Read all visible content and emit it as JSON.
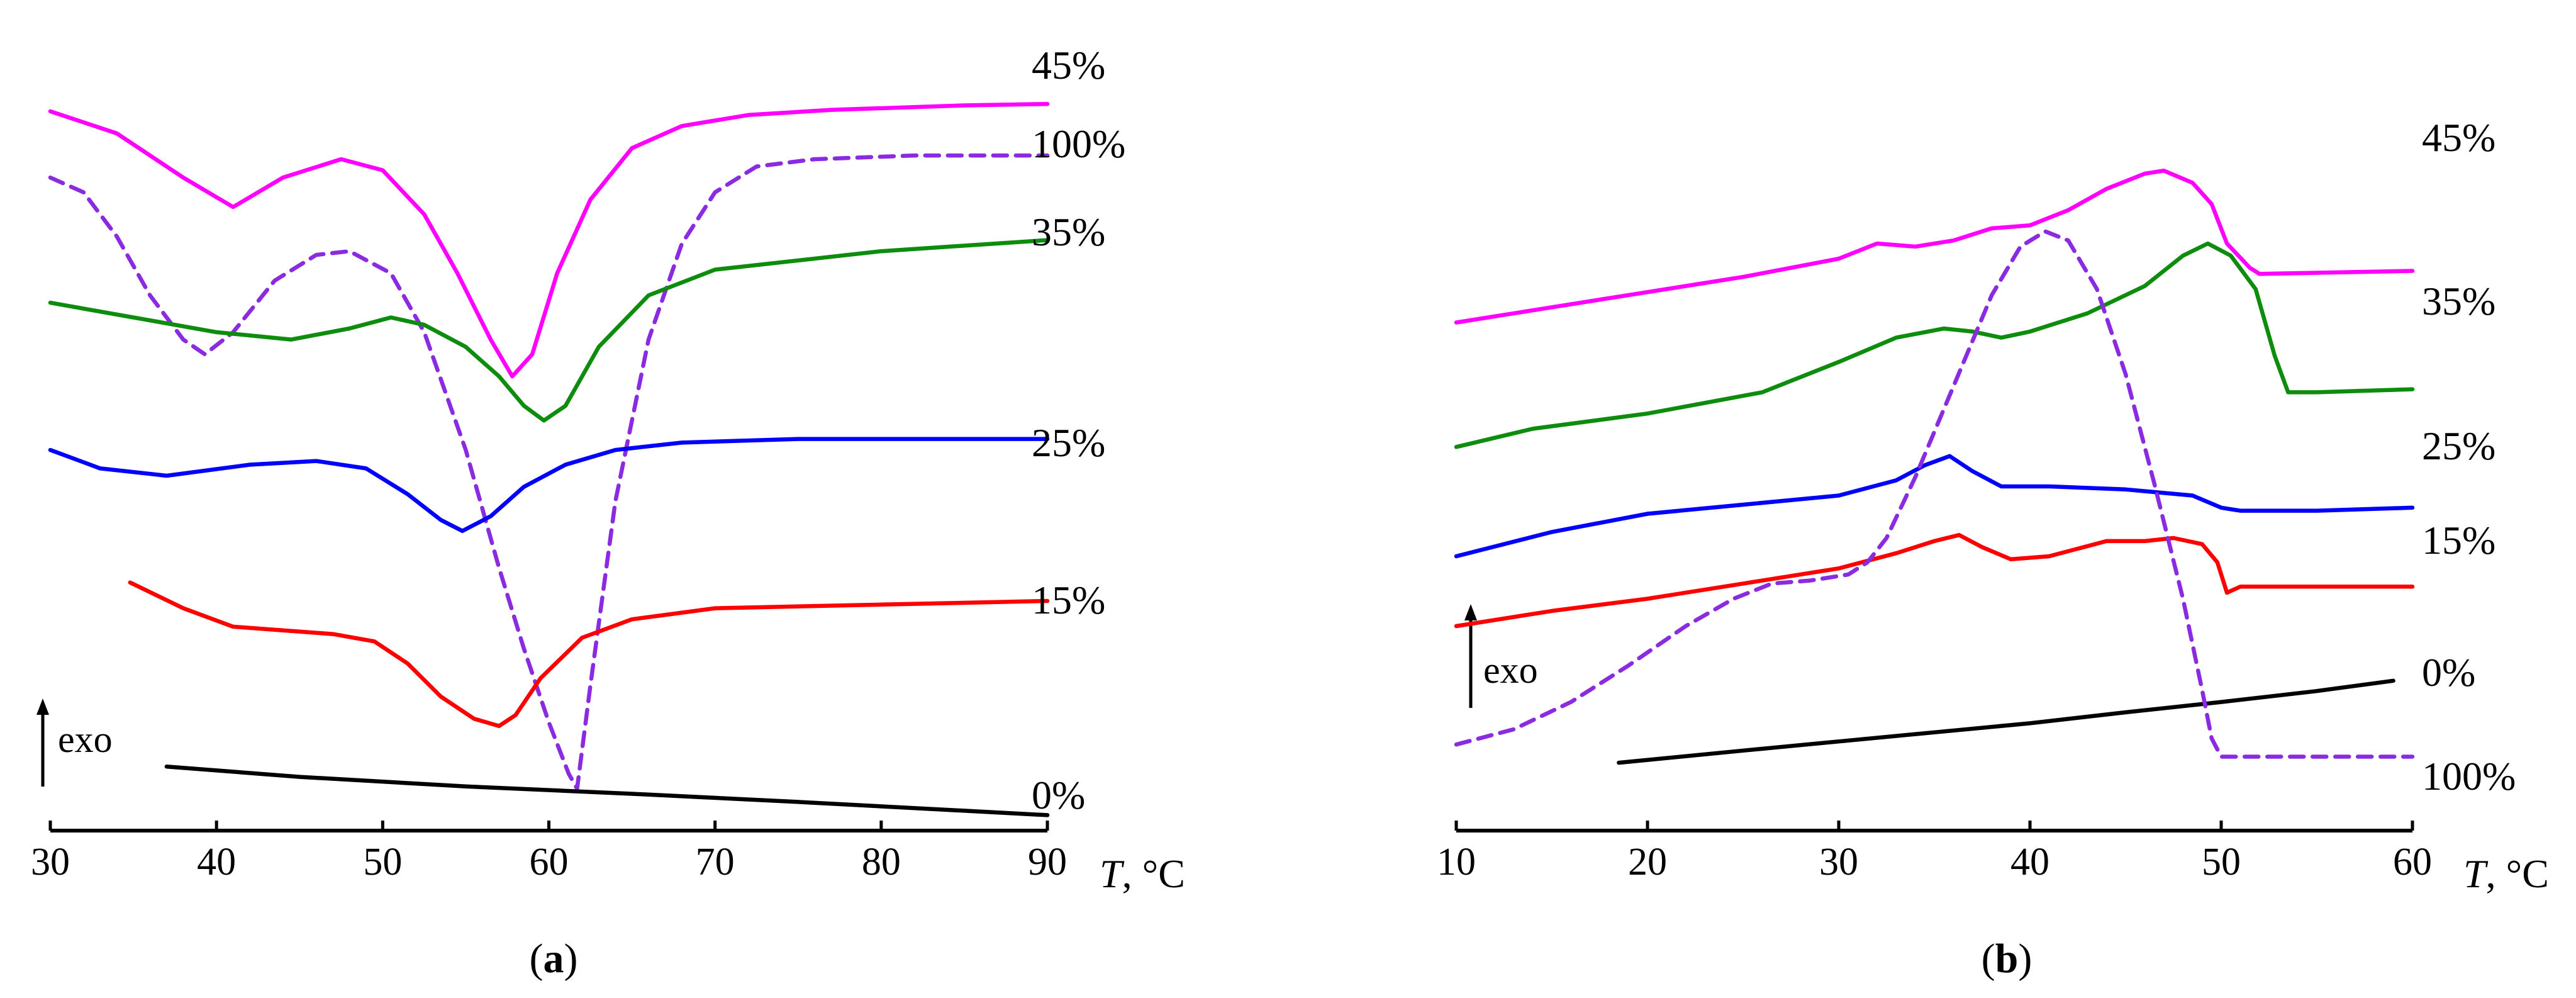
{
  "chart_data": [
    {
      "type": "line",
      "panel_label_prefix": "(",
      "panel_label_letter": "a",
      "panel_label_suffix": ")",
      "xlabel_italic": "T",
      "xlabel_rest": ", °C",
      "xlim": [
        30,
        90
      ],
      "ylim": [
        0,
        100
      ],
      "x_ticks": [
        30,
        40,
        50,
        60,
        70,
        80,
        90
      ],
      "x_tick_labels": [
        "30",
        "40",
        "50",
        "60",
        "70",
        "80",
        "90"
      ],
      "exo_label": "exo",
      "y_axis_ticks": false,
      "series": [
        {
          "name": "45%",
          "color": "#ff00ff",
          "dash": false,
          "x": [
            30,
            34,
            38,
            41,
            44,
            47.5,
            50,
            52.5,
            54.5,
            56.5,
            57.8,
            59,
            60.5,
            62.5,
            65,
            68,
            72,
            77,
            85,
            90
          ],
          "y": [
            93,
            90,
            84,
            80,
            84,
            86.5,
            85,
            79,
            71,
            62,
            57,
            60,
            71,
            81,
            88,
            91,
            92.5,
            93.2,
            93.8,
            94
          ]
        },
        {
          "name": "100%",
          "color": "#8a2be2",
          "dash": true,
          "x": [
            30,
            32,
            34,
            36,
            38,
            39.3,
            41,
            43.5,
            46,
            48,
            50.5,
            52.5,
            55,
            57,
            58.5,
            60,
            61.2,
            61.7,
            62.5,
            64,
            66,
            68,
            70,
            72.5,
            76,
            82,
            90
          ],
          "y": [
            84,
            82,
            76,
            68,
            62,
            60,
            63,
            70,
            73.5,
            74,
            71,
            63,
            47,
            31,
            20,
            10,
            3,
            1,
            15,
            40,
            62,
            75,
            82,
            85.5,
            86.5,
            87,
            87
          ]
        },
        {
          "name": "35%",
          "color": "#0e8c0e",
          "dash": false,
          "x": [
            30,
            35,
            40,
            44.5,
            48,
            50.5,
            52.5,
            55,
            57,
            58.5,
            59.7,
            61,
            63,
            66,
            70,
            74,
            80,
            90
          ],
          "y": [
            67,
            65,
            63,
            62,
            63.5,
            65,
            64,
            61,
            57,
            53,
            51,
            53,
            61,
            68,
            71.5,
            72.5,
            74,
            75.5
          ]
        },
        {
          "name": "25%",
          "color": "#0000ff",
          "dash": false,
          "x": [
            30,
            33,
            37,
            42,
            46,
            49,
            51.5,
            53.5,
            54.8,
            56.5,
            58.5,
            61,
            64,
            68,
            75,
            90
          ],
          "y": [
            47,
            44.5,
            43.5,
            45,
            45.5,
            44.5,
            41,
            37.5,
            36,
            38,
            42,
            45,
            47,
            48,
            48.5,
            48.5
          ]
        },
        {
          "name": "15%",
          "color": "#ff0000",
          "dash": false,
          "x": [
            34.8,
            38,
            41,
            44,
            47,
            49.5,
            51.5,
            53.5,
            55.5,
            57,
            58,
            59.5,
            62,
            65,
            70,
            80,
            90
          ],
          "y": [
            29,
            25.5,
            23,
            22.5,
            22,
            21,
            18,
            13.5,
            10.5,
            9.5,
            11,
            16,
            21.5,
            24,
            25.5,
            26,
            26.5
          ]
        },
        {
          "name": "0%",
          "color": "#000000",
          "dash": false,
          "x": [
            37,
            45,
            55,
            65,
            75,
            85,
            90
          ],
          "y": [
            4,
            2.6,
            1.3,
            0.3,
            -0.8,
            -2.0,
            -2.6
          ]
        }
      ]
    },
    {
      "type": "line",
      "panel_label_prefix": "(",
      "panel_label_letter": "b",
      "panel_label_suffix": ")",
      "xlabel_italic": "T",
      "xlabel_rest": ", °C",
      "xlim": [
        10,
        60
      ],
      "ylim": [
        0,
        100
      ],
      "x_ticks": [
        10,
        20,
        30,
        40,
        50,
        60
      ],
      "x_tick_labels": [
        "10",
        "20",
        "30",
        "40",
        "50",
        "60"
      ],
      "exo_label": "exo",
      "y_axis_ticks": false,
      "series": [
        {
          "name": "45%",
          "color": "#ff00ff",
          "dash": false,
          "x": [
            10,
            15,
            20,
            25,
            30,
            32,
            34,
            36,
            38,
            40,
            42,
            44,
            46,
            47,
            48.5,
            49.5,
            50.3,
            51.5,
            52,
            60
          ],
          "y": [
            78.5,
            81,
            83.5,
            86,
            89,
            91.5,
            91,
            92,
            94,
            94.5,
            97,
            100.5,
            103,
            103.5,
            101.5,
            98,
            91.5,
            87.5,
            86.5,
            87
          ]
        },
        {
          "name": "35%",
          "color": "#0e8c0e",
          "dash": false,
          "x": [
            10,
            14,
            20,
            26,
            30,
            33,
            35.5,
            37,
            38.5,
            40,
            43,
            46,
            48,
            49.3,
            50.5,
            51.8,
            52.8,
            53.5,
            55,
            60
          ],
          "y": [
            58,
            61,
            63.5,
            67,
            72,
            76,
            77.5,
            77,
            76,
            77,
            80,
            84.5,
            89.5,
            91.5,
            89.5,
            84,
            73,
            67,
            67,
            67.5
          ]
        },
        {
          "name": "25%",
          "color": "#0000ff",
          "dash": false,
          "x": [
            10,
            15,
            20,
            25,
            30,
            33,
            34.5,
            35.8,
            37,
            38.5,
            41,
            45,
            48.5,
            50,
            51,
            55,
            60
          ],
          "y": [
            40,
            44,
            47,
            48.5,
            50,
            52.5,
            55,
            56.5,
            54,
            51.5,
            51.5,
            51,
            50,
            48,
            47.5,
            47.5,
            48
          ]
        },
        {
          "name": "15%",
          "color": "#ff0000",
          "dash": false,
          "x": [
            10,
            15,
            20,
            25,
            30,
            33,
            35,
            36.3,
            37.5,
            39,
            41,
            44,
            46,
            47.5,
            49,
            49.8,
            50.3,
            51,
            55,
            60
          ],
          "y": [
            28.5,
            31,
            33,
            35.5,
            38,
            40.5,
            42.5,
            43.5,
            41.5,
            39.5,
            40,
            42.5,
            42.5,
            43,
            42,
            39,
            34,
            35,
            35,
            35
          ]
        },
        {
          "name": "0%",
          "color": "#000000",
          "dash": false,
          "x": [
            18.5,
            25,
            30,
            35,
            40,
            45,
            50,
            55,
            59
          ],
          "y": [
            6,
            8,
            9.5,
            11,
            12.5,
            14.3,
            16,
            17.8,
            19.5
          ]
        },
        {
          "name": "100%",
          "color": "#8a2be2",
          "dash": true,
          "x": [
            10,
            13,
            16,
            19,
            22,
            24.5,
            26.5,
            28.5,
            30.5,
            31.5,
            32.5,
            34,
            36,
            38,
            39.5,
            40.8,
            42,
            43.5,
            45,
            46.5,
            48,
            49,
            49.5,
            50,
            52,
            60
          ],
          "y": [
            9,
            11.5,
            16,
            22,
            28.5,
            33,
            35.5,
            36,
            37,
            39,
            43,
            53,
            68,
            83,
            91,
            93.5,
            92,
            84,
            70,
            52,
            33,
            18,
            10,
            7,
            7,
            7
          ]
        }
      ]
    }
  ]
}
